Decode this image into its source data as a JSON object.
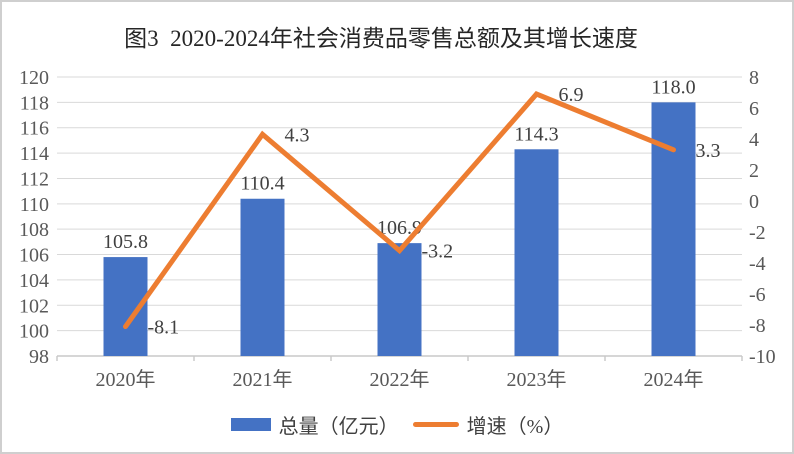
{
  "title": "图3  2020-2024年社会消费品零售总额及其增长速度",
  "chart_data": {
    "type": "bar+line combo",
    "title": "图3  2020-2024年社会消费品零售总额及其增长速度",
    "categories": [
      "2020年",
      "2021年",
      "2022年",
      "2023年",
      "2024年"
    ],
    "series": [
      {
        "name": "总量（亿元）",
        "type": "bar",
        "axis": "left",
        "color": "#4472C4",
        "values": [
          105.8,
          110.4,
          106.9,
          114.3,
          118.0
        ],
        "labels": [
          "105.8",
          "110.4",
          "106.9",
          "114.3",
          "118.0"
        ]
      },
      {
        "name": "增速（%）",
        "type": "line",
        "axis": "right",
        "color": "#ED7D31",
        "values": [
          -8.1,
          4.3,
          -3.2,
          6.9,
          3.3
        ],
        "labels": [
          "-8.1",
          "4.3",
          "-3.2",
          "6.9",
          "3.3"
        ]
      }
    ],
    "left_axis": {
      "min": 98,
      "max": 120,
      "step": 2,
      "ticks": [
        "120",
        "118",
        "116",
        "114",
        "112",
        "110",
        "108",
        "106",
        "104",
        "102",
        "100",
        "98"
      ]
    },
    "right_axis": {
      "min": -10,
      "max": 8,
      "step": 2,
      "ticks": [
        "8",
        "6",
        "4",
        "2",
        "0",
        "-2",
        "-4",
        "-6",
        "-8",
        "-10"
      ]
    },
    "grid": true,
    "legend_position": "bottom"
  },
  "legend": {
    "items": [
      {
        "label": "总量（亿元）",
        "swatch": "bar",
        "color": "#4472C4"
      },
      {
        "label": "增速（%）",
        "swatch": "line",
        "color": "#ED7D31"
      }
    ]
  },
  "colors": {
    "bar": "#4472C4",
    "line": "#ED7D31",
    "gridline": "#D9D9D9",
    "axis_line": "#C8C8C8",
    "tick_label": "#595959",
    "data_label": "#404040",
    "title_text": "#262626",
    "frame_border": "#CFCFCF",
    "background": "#FFFFFF"
  }
}
